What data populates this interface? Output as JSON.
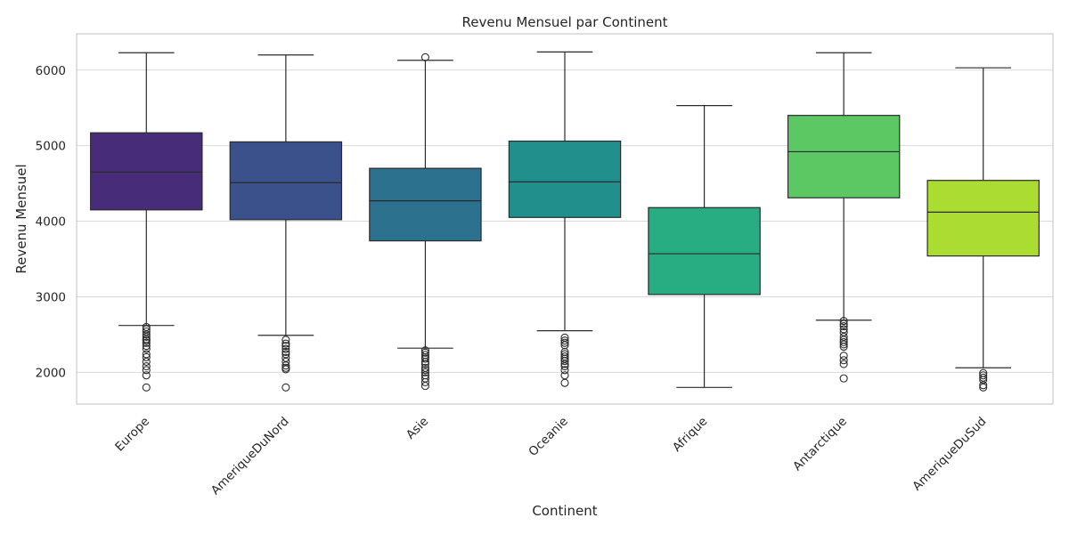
{
  "chart_data": {
    "type": "box",
    "title": "Revenu Mensuel par Continent",
    "xlabel": "Continent",
    "ylabel": "Revenu Mensuel",
    "ylim": [
      1580,
      6480
    ],
    "yticks": [
      2000,
      3000,
      4000,
      5000,
      6000
    ],
    "grid": true,
    "categories": [
      "Europe",
      "AmeriqueDuNord",
      "Asie",
      "Oceanie",
      "Afrique",
      "Antarctique",
      "AmeriqueDuSud"
    ],
    "colors": [
      "#472c7a",
      "#3b518b",
      "#2c718e",
      "#21908d",
      "#27ad81",
      "#5cc863",
      "#aadc32"
    ],
    "boxes": [
      {
        "whislo": 2620,
        "q1": 4150,
        "med": 4650,
        "q3": 5170,
        "whishi": 6230,
        "fliers": [
          2600,
          2570,
          2540,
          2500,
          2470,
          2440,
          2420,
          2390,
          2350,
          2310,
          2240,
          2200,
          2140,
          2080,
          2030,
          1960,
          1800
        ]
      },
      {
        "whislo": 2490,
        "q1": 4020,
        "med": 4510,
        "q3": 5050,
        "whishi": 6200,
        "fliers": [
          2430,
          2380,
          2350,
          2310,
          2270,
          2240,
          2190,
          2140,
          2090,
          2060,
          2040,
          1800
        ]
      },
      {
        "whislo": 2320,
        "q1": 3740,
        "med": 4270,
        "q3": 4700,
        "whishi": 6130,
        "fliers": [
          6170,
          2290,
          2260,
          2230,
          2200,
          2180,
          2140,
          2110,
          2060,
          2030,
          2000,
          1960,
          1920,
          1870,
          1820
        ]
      },
      {
        "whislo": 2550,
        "q1": 4050,
        "med": 4520,
        "q3": 5060,
        "whishi": 6240,
        "fliers": [
          2460,
          2420,
          2390,
          2360,
          2270,
          2240,
          2210,
          2180,
          2150,
          2110,
          2080,
          2030,
          1960,
          1860
        ]
      },
      {
        "whislo": 1800,
        "q1": 3030,
        "med": 3570,
        "q3": 4180,
        "whishi": 5530,
        "fliers": []
      },
      {
        "whislo": 2690,
        "q1": 4310,
        "med": 4920,
        "q3": 5400,
        "whishi": 6230,
        "fliers": [
          2680,
          2640,
          2610,
          2570,
          2530,
          2470,
          2430,
          2400,
          2370,
          2340,
          2220,
          2160,
          2110,
          1920
        ]
      },
      {
        "whislo": 2060,
        "q1": 3540,
        "med": 4120,
        "q3": 4540,
        "whishi": 6030,
        "fliers": [
          1990,
          1960,
          1930,
          1900,
          1830,
          1800
        ]
      }
    ]
  }
}
